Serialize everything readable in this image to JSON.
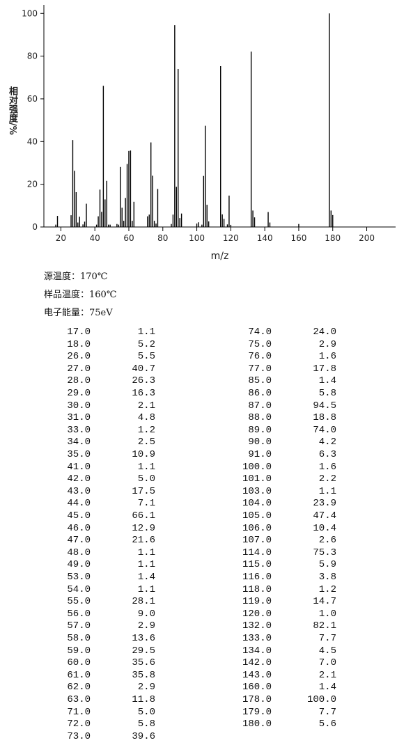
{
  "chart_data": {
    "type": "bar",
    "y_label": "相对强度/%",
    "x_label": "m/z",
    "color": "#000000",
    "x": [
      17,
      18,
      26,
      27,
      28,
      29,
      30,
      31,
      33,
      34,
      35,
      41,
      42,
      43,
      44,
      45,
      46,
      47,
      48,
      49,
      53,
      54,
      55,
      56,
      57,
      58,
      59,
      60,
      61,
      62,
      63,
      71,
      72,
      73,
      74,
      75,
      76,
      77,
      85,
      86,
      87,
      88,
      89,
      90,
      91,
      100,
      101,
      103,
      104,
      105,
      106,
      107,
      114,
      115,
      116,
      118,
      119,
      120,
      132,
      133,
      134,
      142,
      143,
      160,
      178,
      179,
      180
    ],
    "values": [
      1.1,
      5.2,
      5.5,
      40.7,
      26.3,
      16.3,
      2.1,
      4.8,
      1.2,
      2.5,
      10.9,
      1.1,
      5.0,
      17.5,
      7.1,
      66.1,
      12.9,
      21.6,
      1.1,
      1.1,
      1.4,
      1.1,
      28.1,
      9.0,
      2.9,
      13.6,
      29.5,
      35.6,
      35.8,
      2.9,
      11.8,
      5.0,
      5.8,
      39.6,
      24.0,
      2.9,
      1.6,
      17.8,
      1.4,
      5.8,
      94.5,
      18.8,
      74.0,
      4.2,
      6.3,
      1.6,
      2.2,
      1.1,
      23.9,
      47.4,
      10.4,
      2.6,
      75.3,
      5.9,
      3.8,
      1.2,
      14.7,
      1.0,
      82.1,
      7.7,
      4.5,
      7.0,
      2.1,
      1.4,
      100.0,
      7.7,
      5.6
    ],
    "xlim": [
      10,
      217
    ],
    "ylim": [
      0,
      104
    ],
    "xticks": [
      20,
      40,
      60,
      80,
      100,
      120,
      140,
      160,
      180,
      200
    ],
    "yticks": [
      0,
      20,
      40,
      60,
      80,
      100
    ]
  },
  "conditions": [
    "源温度：170℃",
    "样品温度：160℃",
    "电子能量：75eV"
  ],
  "table": {
    "rows": [
      [
        "17.0",
        "1.1"
      ],
      [
        "18.0",
        "5.2"
      ],
      [
        "26.0",
        "5.5"
      ],
      [
        "27.0",
        "40.7"
      ],
      [
        "28.0",
        "26.3"
      ],
      [
        "29.0",
        "16.3"
      ],
      [
        "30.0",
        "2.1"
      ],
      [
        "31.0",
        "4.8"
      ],
      [
        "33.0",
        "1.2"
      ],
      [
        "34.0",
        "2.5"
      ],
      [
        "35.0",
        "10.9"
      ],
      [
        "41.0",
        "1.1"
      ],
      [
        "42.0",
        "5.0"
      ],
      [
        "43.0",
        "17.5"
      ],
      [
        "44.0",
        "7.1"
      ],
      [
        "45.0",
        "66.1"
      ],
      [
        "46.0",
        "12.9"
      ],
      [
        "47.0",
        "21.6"
      ],
      [
        "48.0",
        "1.1"
      ],
      [
        "49.0",
        "1.1"
      ],
      [
        "53.0",
        "1.4"
      ],
      [
        "54.0",
        "1.1"
      ],
      [
        "55.0",
        "28.1"
      ],
      [
        "56.0",
        "9.0"
      ],
      [
        "57.0",
        "2.9"
      ],
      [
        "58.0",
        "13.6"
      ],
      [
        "59.0",
        "29.5"
      ],
      [
        "60.0",
        "35.6"
      ],
      [
        "61.0",
        "35.8"
      ],
      [
        "62.0",
        "2.9"
      ],
      [
        "63.0",
        "11.8"
      ],
      [
        "71.0",
        "5.0"
      ],
      [
        "72.0",
        "5.8"
      ],
      [
        "73.0",
        "39.6"
      ],
      [
        "74.0",
        "24.0"
      ],
      [
        "75.0",
        "2.9"
      ],
      [
        "76.0",
        "1.6"
      ],
      [
        "77.0",
        "17.8"
      ],
      [
        "85.0",
        "1.4"
      ],
      [
        "86.0",
        "5.8"
      ],
      [
        "87.0",
        "94.5"
      ],
      [
        "88.0",
        "18.8"
      ],
      [
        "89.0",
        "74.0"
      ],
      [
        "90.0",
        "4.2"
      ],
      [
        "91.0",
        "6.3"
      ],
      [
        "100.0",
        "1.6"
      ],
      [
        "101.0",
        "2.2"
      ],
      [
        "103.0",
        "1.1"
      ],
      [
        "104.0",
        "23.9"
      ],
      [
        "105.0",
        "47.4"
      ],
      [
        "106.0",
        "10.4"
      ],
      [
        "107.0",
        "2.6"
      ],
      [
        "114.0",
        "75.3"
      ],
      [
        "115.0",
        "5.9"
      ],
      [
        "116.0",
        "3.8"
      ],
      [
        "118.0",
        "1.2"
      ],
      [
        "119.0",
        "14.7"
      ],
      [
        "120.0",
        "1.0"
      ],
      [
        "132.0",
        "82.1"
      ],
      [
        "133.0",
        "7.7"
      ],
      [
        "134.0",
        "4.5"
      ],
      [
        "142.0",
        "7.0"
      ],
      [
        "143.0",
        "2.1"
      ],
      [
        "160.0",
        "1.4"
      ],
      [
        "178.0",
        "100.0"
      ],
      [
        "179.0",
        "7.7"
      ],
      [
        "180.0",
        "5.6"
      ]
    ]
  }
}
